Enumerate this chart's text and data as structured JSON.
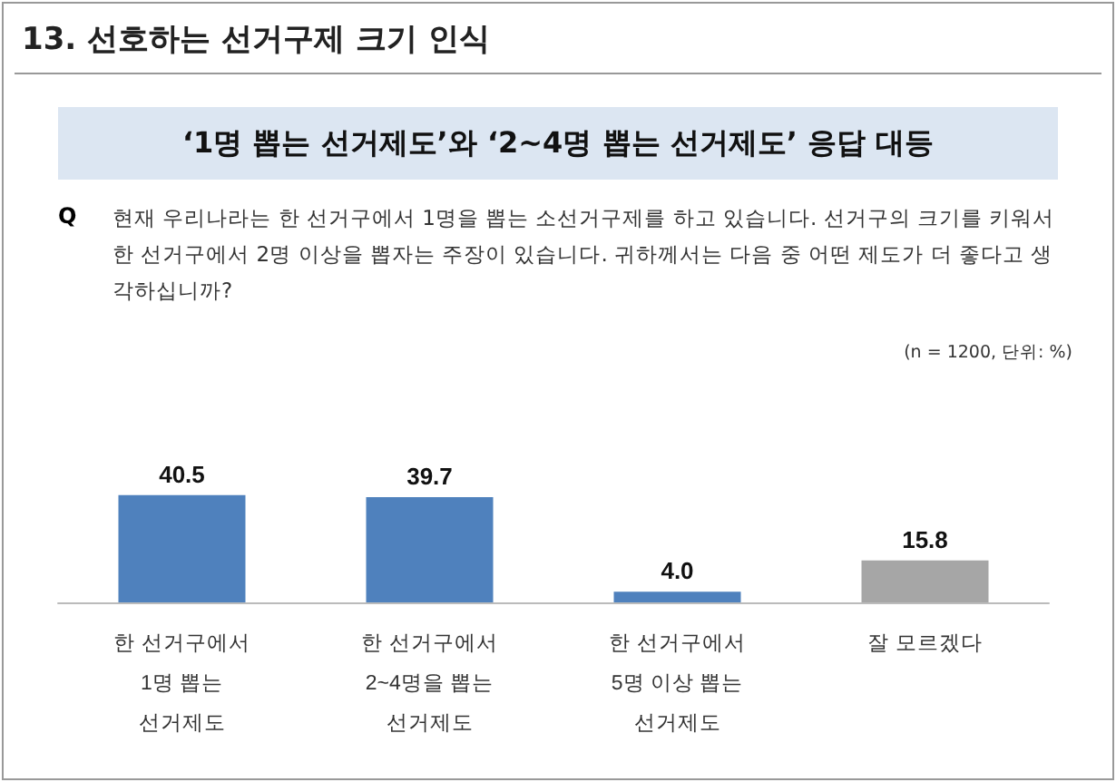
{
  "chart_data": {
    "type": "bar",
    "title": "13. 선호하는 선거구제 크기 인식",
    "subtitle": "‘1명 뽑는 선거제도’와 ‘2~4명 뽑는 선거제도’ 응답 대등",
    "annotations": [
      "Q",
      "현재 우리나라는 한 선거구에서 1명을 뽑는 소선거구제를 하고 있습니다. 선거구의 크기를 키워서 한 선거구에서 2명 이상을 뽑자는 주장이 있습니다. 귀하께서는 다음 중 어떤 제도가 더 좋다고 생각하십니까?",
      "(n = 1200, 단위: %)"
    ],
    "categories": [
      "한 선거구에서\n1명 뽑는\n선거제도",
      "한 선거구에서\n2~4명을 뽑는\n선거제도",
      "한 선거구에서\n5명 이상 뽑는\n선거제도",
      "잘 모르겠다"
    ],
    "values": [
      40.5,
      39.7,
      4.0,
      15.8
    ],
    "colors": [
      "#4f81bd",
      "#4f81bd",
      "#4f81bd",
      "#a6a6a6"
    ],
    "value_labels": [
      "40.5",
      "39.7",
      "4.0",
      "15.8"
    ]
  }
}
